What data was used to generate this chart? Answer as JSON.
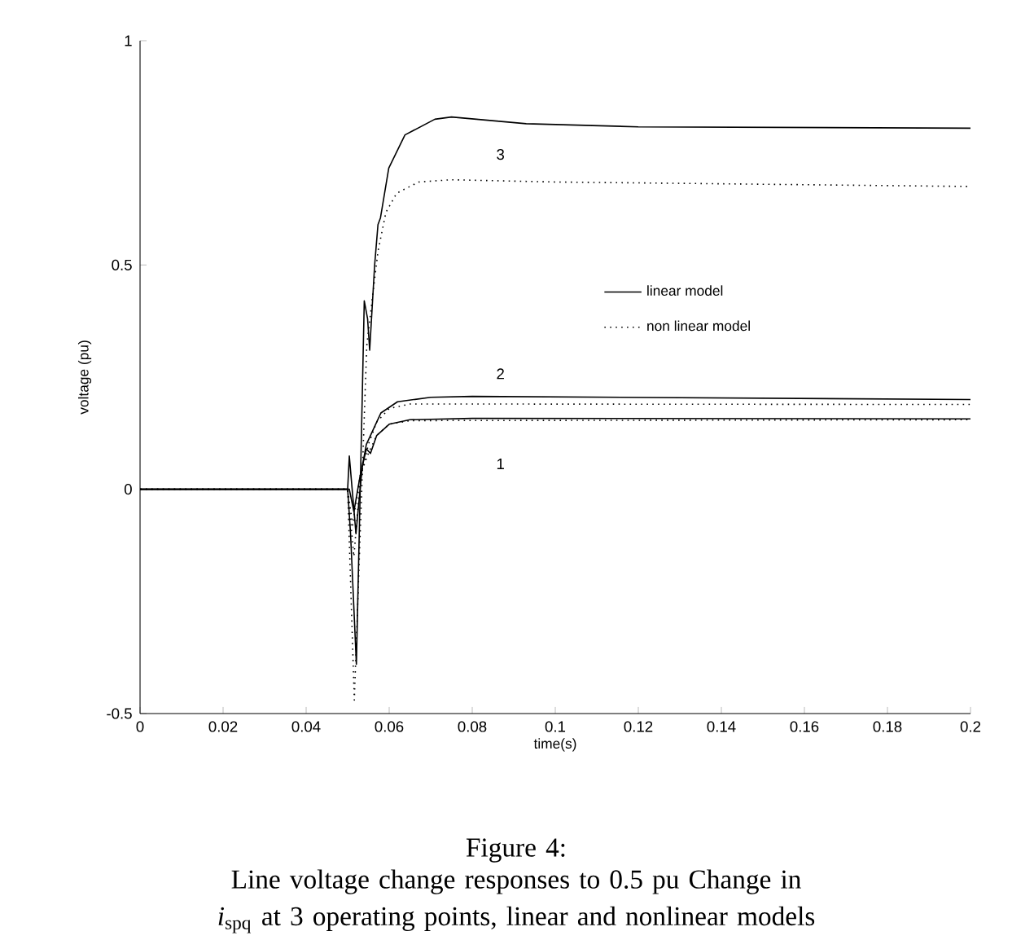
{
  "chart_data": {
    "type": "line",
    "xlabel": "time(s)",
    "ylabel": "voltage (pu)",
    "xlim": [
      0,
      0.2
    ],
    "ylim": [
      -0.5,
      1
    ],
    "xticks": [
      0,
      0.02,
      0.04,
      0.06,
      0.08,
      0.1,
      0.12,
      0.14,
      0.16,
      0.18,
      0.2
    ],
    "yticks": [
      -0.5,
      0,
      0.5,
      1
    ],
    "legend": "right",
    "series": [
      {
        "name": "linear model",
        "color": "#000000",
        "line_style": "solid",
        "x": [
          0,
          0.05,
          0.0507,
          0.0521,
          0.0535,
          0.054,
          0.0548,
          0.0553,
          0.0565,
          0.0573,
          0.0579,
          0.0599,
          0.0638,
          0.071,
          0.075,
          0.093,
          0.12,
          0.2
        ],
        "values": [
          0,
          0,
          -0.1,
          -0.39,
          0.2,
          0.42,
          0.38,
          0.31,
          0.5,
          0.59,
          0.605,
          0.716,
          0.79,
          0.825,
          0.83,
          0.815,
          0.808,
          0.805
        ]
      },
      {
        "color": "#000000",
        "line_style": "solid",
        "x": [
          0,
          0.05,
          0.0504,
          0.052,
          0.0535,
          0.0545,
          0.0555,
          0.058,
          0.062,
          0.07,
          0.08,
          0.2
        ],
        "values": [
          0,
          0,
          0.074,
          -0.099,
          0.05,
          0.1,
          0.12,
          0.17,
          0.195,
          0.205,
          0.207,
          0.2
        ]
      },
      {
        "color": "#000000",
        "line_style": "solid",
        "x": [
          0,
          0.05,
          0.0504,
          0.0515,
          0.053,
          0.0545,
          0.0555,
          0.057,
          0.06,
          0.065,
          0.08,
          0.2
        ],
        "values": [
          0,
          0,
          0,
          -0.05,
          0.03,
          0.09,
          0.08,
          0.12,
          0.145,
          0.155,
          0.158,
          0.157
        ]
      },
      {
        "name": "non linear model",
        "color": "#000000",
        "line_style": "dotted",
        "x": [
          0,
          0.05,
          0.0516,
          0.0533,
          0.0546,
          0.056,
          0.0573,
          0.0592,
          0.0618,
          0.0671,
          0.0749,
          0.1,
          0.2
        ],
        "values": [
          0,
          0,
          -0.47,
          -0.025,
          0.32,
          0.43,
          0.53,
          0.617,
          0.66,
          0.685,
          0.69,
          0.685,
          0.675
        ]
      },
      {
        "color": "#000000",
        "line_style": "dotted",
        "x": [
          0,
          0.05,
          0.0515,
          0.053,
          0.055,
          0.057,
          0.06,
          0.065,
          0.08,
          0.2
        ],
        "values": [
          0,
          0,
          -0.15,
          0.02,
          0.1,
          0.15,
          0.18,
          0.19,
          0.19,
          0.189
        ]
      },
      {
        "color": "#000000",
        "line_style": "dotted",
        "x": [
          0,
          0.05,
          0.0512,
          0.053,
          0.055,
          0.057,
          0.06,
          0.065,
          0.2
        ],
        "values": [
          0,
          0,
          -0.08,
          0.03,
          0.08,
          0.12,
          0.145,
          0.153,
          0.155
        ]
      }
    ],
    "annotations": [
      "3",
      "2",
      "1",
      "Figure 4:",
      "Line voltage change responses to 0.5 pu Change in *i*$_{spq}$ at 3 operating points, linear and nonlinear models"
    ]
  }
}
